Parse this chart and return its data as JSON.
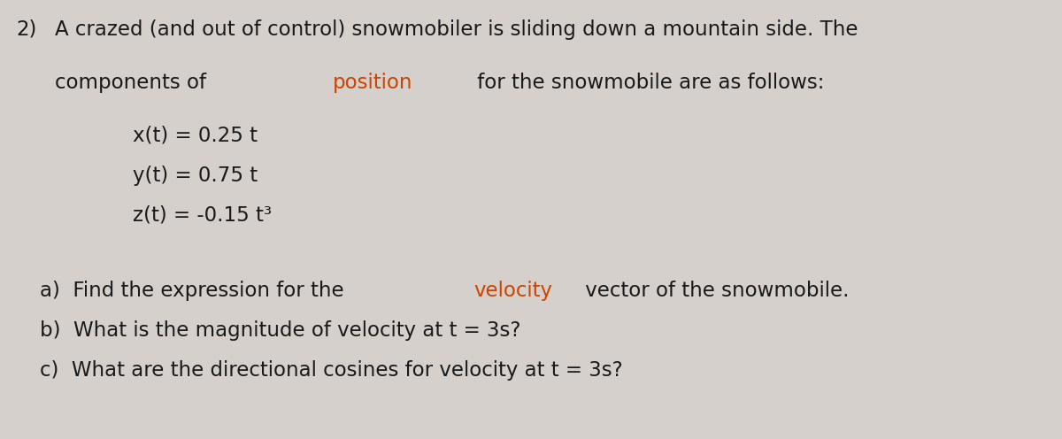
{
  "bg_color": "#d5d0cb",
  "text_color": "#1a1a1a",
  "highlight_color": "#cc4400",
  "fig_width": 12.0,
  "fig_height": 4.96,
  "font_size_main": 16.5,
  "font_family": "DejaVu Sans",
  "line1_num": "2)",
  "line1_rest": "A crazed (and out of control) snowmobiler is sliding down a mountain side. The",
  "line2_pre": "components of ",
  "line2_hl": "position",
  "line2_post": " for the snowmobile are as follows:",
  "eq1": "x(t) = 0.25 t",
  "eq2": "y(t) = 0.75 t",
  "eq3": "z(t) = -0.15 t³",
  "pa_pre": "a)  Find the expression for the ",
  "pa_hl": "velocity",
  "pa_post": " vector of the snowmobile.",
  "pb": "b)  What is the magnitude of velocity at t = 3s?",
  "pc": "c)  What are the directional cosines for velocity at t = 3s?"
}
